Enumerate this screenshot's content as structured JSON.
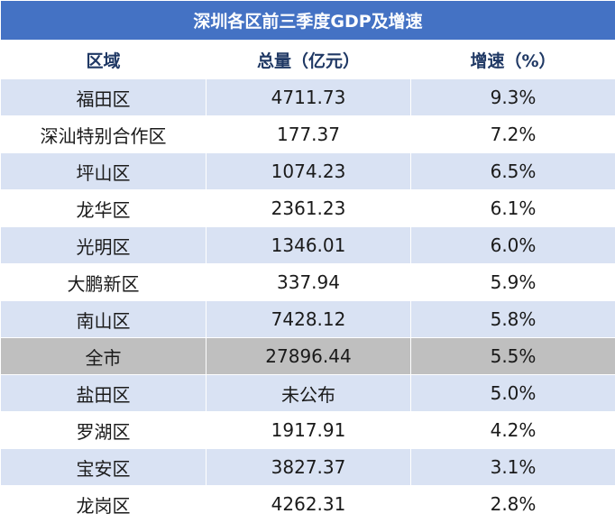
{
  "chart_data": {
    "type": "table",
    "title": "深圳各区前三季度GDP及增速",
    "columns": [
      "区域",
      "总量（亿元）",
      "增速（%）"
    ],
    "rows": [
      {
        "district": "福田区",
        "total": "4711.73",
        "growth": "9.3%"
      },
      {
        "district": "深汕特别合作区",
        "total": "177.37",
        "growth": "7.2%"
      },
      {
        "district": "坪山区",
        "total": "1074.23",
        "growth": "6.5%"
      },
      {
        "district": "龙华区",
        "total": "2361.23",
        "growth": "6.1%"
      },
      {
        "district": "光明区",
        "total": "1346.01",
        "growth": "6.0%"
      },
      {
        "district": "大鹏新区",
        "total": "337.94",
        "growth": "5.9%"
      },
      {
        "district": "南山区",
        "total": "7428.12",
        "growth": "5.8%"
      },
      {
        "district": "全市",
        "total": "27896.44",
        "growth": "5.5%"
      },
      {
        "district": "盐田区",
        "total": "未公布",
        "growth": "5.0%"
      },
      {
        "district": "罗湖区",
        "total": "1917.91",
        "growth": "4.2%"
      },
      {
        "district": "宝安区",
        "total": "3827.37",
        "growth": "3.1%"
      },
      {
        "district": "龙岗区",
        "total": "4262.31",
        "growth": "2.8%"
      }
    ],
    "highlight_row": 7
  },
  "colors": {
    "title_bg": "#4472c4",
    "header_text": "#1f3864",
    "band_odd": "#d9e2f3",
    "band_even": "#ffffff",
    "total_row": "#bfbfbf"
  }
}
